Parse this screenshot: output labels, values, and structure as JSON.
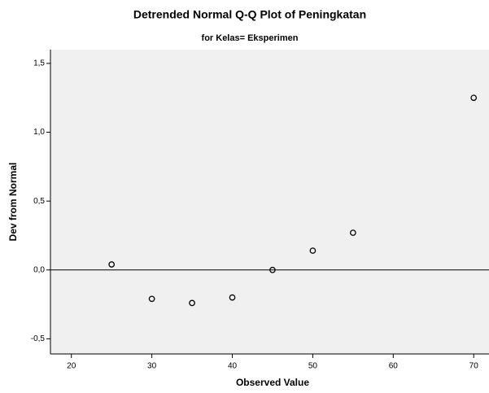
{
  "chart_data": {
    "type": "scatter",
    "title": "Detrended Normal Q-Q Plot of Peningkatan",
    "subtitle": "for Kelas= Eksperimen",
    "xlabel": "Observed Value",
    "ylabel": "Dev from Normal",
    "x": [
      25,
      30,
      35,
      40,
      45,
      50,
      55,
      70
    ],
    "values": [
      0.04,
      -0.21,
      -0.24,
      -0.2,
      0.0,
      0.14,
      0.27,
      1.25
    ],
    "color": "#000000",
    "background": "#f0f0f0",
    "reference_line": 0,
    "xlim": [
      17.4,
      71.9
    ],
    "ylim": [
      -0.61,
      1.6
    ],
    "xticks": [
      20,
      30,
      40,
      50,
      60,
      70
    ],
    "yticks": [
      {
        "value": -0.5,
        "label": "-0,5"
      },
      {
        "value": 0,
        "label": "0,0"
      },
      {
        "value": 0.5,
        "label": "0,5"
      },
      {
        "value": 1.0,
        "label": "1,0"
      },
      {
        "value": 1.5,
        "label": "1,5"
      }
    ],
    "grid": false
  }
}
